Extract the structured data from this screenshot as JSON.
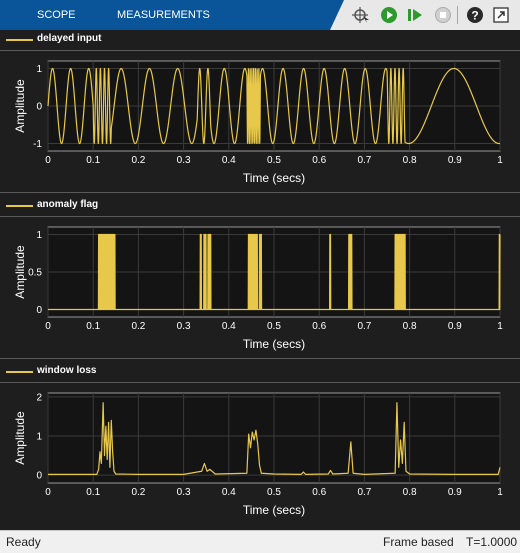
{
  "toolbar": {
    "tabs": [
      "SCOPE",
      "MEASUREMENTS"
    ],
    "buttons": [
      "signal-select-icon",
      "run-icon",
      "step-forward-icon",
      "stop-icon",
      "help-icon",
      "undock-icon"
    ]
  },
  "panels": [
    {
      "legend": "delayed input",
      "ylabel": "Amplitude",
      "xlabel": "Time (secs)"
    },
    {
      "legend": "anomaly flag",
      "ylabel": "Amplitude",
      "xlabel": "Time (secs)"
    },
    {
      "legend": "window loss",
      "ylabel": "Amplitude",
      "xlabel": "Time (secs)"
    }
  ],
  "status": {
    "left": "Ready",
    "mode": "Frame based",
    "time": "T=1.0000"
  },
  "colors": {
    "trace": "#e8c84a",
    "plot_bg": "#141414",
    "toolbar": "#0a5599"
  },
  "chart_data": [
    {
      "type": "line",
      "series": [
        {
          "name": "delayed input"
        }
      ],
      "xlabel": "Time (secs)",
      "ylabel": "Amplitude",
      "xlim": [
        0,
        1
      ],
      "ylim": [
        -1.2,
        1.2
      ],
      "xticks": [
        "0",
        "0.1",
        "0.2",
        "0.3",
        "0.4",
        "0.5",
        "0.6",
        "0.7",
        "0.8",
        "0.9",
        "1"
      ],
      "yticks": [
        "-1",
        "0",
        "1"
      ],
      "ytick_values": [
        -1,
        0,
        1
      ],
      "frequencies_hz": [
        {
          "x": [
            0.0,
            0.1
          ],
          "f": 25
        },
        {
          "x": [
            0.1,
            0.14
          ],
          "f": 110
        },
        {
          "x": [
            0.14,
            0.33
          ],
          "f": 16
        },
        {
          "x": [
            0.33,
            0.36
          ],
          "f": 55
        },
        {
          "x": [
            0.36,
            0.44
          ],
          "f": 22
        },
        {
          "x": [
            0.44,
            0.47
          ],
          "f": 260
        },
        {
          "x": [
            0.47,
            0.75
          ],
          "f": 22
        },
        {
          "x": [
            0.75,
            0.79
          ],
          "f": 110
        },
        {
          "x": [
            0.79,
            1.0
          ],
          "f": 5
        }
      ],
      "grid": true
    },
    {
      "type": "line",
      "series": [
        {
          "name": "anomaly flag"
        }
      ],
      "xlabel": "Time (secs)",
      "ylabel": "Amplitude",
      "xlim": [
        0,
        1
      ],
      "ylim": [
        -0.1,
        1.1
      ],
      "xticks": [
        "0",
        "0.1",
        "0.2",
        "0.3",
        "0.4",
        "0.5",
        "0.6",
        "0.7",
        "0.8",
        "0.9",
        "1"
      ],
      "yticks": [
        "0",
        "0.5",
        "1"
      ],
      "ytick_values": [
        0,
        0.5,
        1
      ],
      "high_intervals": [
        [
          0.112,
          0.148
        ],
        [
          0.337,
          0.339
        ],
        [
          0.345,
          0.35
        ],
        [
          0.354,
          0.36
        ],
        [
          0.443,
          0.455
        ],
        [
          0.457,
          0.463
        ],
        [
          0.468,
          0.472
        ],
        [
          0.623,
          0.625
        ],
        [
          0.665,
          0.672
        ],
        [
          0.768,
          0.772
        ],
        [
          0.774,
          0.79
        ],
        [
          0.998,
          1.0
        ]
      ],
      "grid": true
    },
    {
      "type": "line",
      "series": [
        {
          "name": "window loss"
        }
      ],
      "xlabel": "Time (secs)",
      "ylabel": "Amplitude",
      "xlim": [
        0,
        1
      ],
      "ylim": [
        -0.2,
        2.1
      ],
      "xticks": [
        "0",
        "0.1",
        "0.2",
        "0.3",
        "0.4",
        "0.5",
        "0.6",
        "0.7",
        "0.8",
        "0.9",
        "1"
      ],
      "yticks": [
        "0",
        "1",
        "2"
      ],
      "ytick_values": [
        0,
        1,
        2
      ],
      "points": [
        [
          0,
          0.02
        ],
        [
          0.05,
          0.02
        ],
        [
          0.108,
          0.02
        ],
        [
          0.112,
          0.15
        ],
        [
          0.115,
          0.6
        ],
        [
          0.118,
          0.3
        ],
        [
          0.122,
          1.85
        ],
        [
          0.125,
          0.5
        ],
        [
          0.128,
          1.25
        ],
        [
          0.131,
          0.4
        ],
        [
          0.134,
          1.35
        ],
        [
          0.137,
          0.2
        ],
        [
          0.14,
          1.4
        ],
        [
          0.143,
          0.6
        ],
        [
          0.146,
          0.1
        ],
        [
          0.15,
          0.03
        ],
        [
          0.2,
          0.02
        ],
        [
          0.3,
          0.02
        ],
        [
          0.34,
          0.1
        ],
        [
          0.346,
          0.3
        ],
        [
          0.352,
          0.1
        ],
        [
          0.358,
          0.15
        ],
        [
          0.37,
          0.03
        ],
        [
          0.44,
          0.05
        ],
        [
          0.444,
          1.05
        ],
        [
          0.448,
          0.7
        ],
        [
          0.452,
          1.1
        ],
        [
          0.456,
          0.9
        ],
        [
          0.46,
          1.15
        ],
        [
          0.464,
          0.8
        ],
        [
          0.468,
          0.25
        ],
        [
          0.472,
          0.05
        ],
        [
          0.5,
          0.03
        ],
        [
          0.56,
          0.02
        ],
        [
          0.565,
          0.08
        ],
        [
          0.57,
          0.02
        ],
        [
          0.62,
          0.03
        ],
        [
          0.625,
          0.12
        ],
        [
          0.63,
          0.03
        ],
        [
          0.664,
          0.05
        ],
        [
          0.67,
          0.85
        ],
        [
          0.675,
          0.05
        ],
        [
          0.7,
          0.02
        ],
        [
          0.768,
          0.05
        ],
        [
          0.772,
          1.85
        ],
        [
          0.776,
          0.2
        ],
        [
          0.78,
          0.9
        ],
        [
          0.784,
          0.3
        ],
        [
          0.788,
          1.35
        ],
        [
          0.792,
          0.1
        ],
        [
          0.8,
          0.03
        ],
        [
          0.9,
          0.02
        ],
        [
          0.996,
          0.02
        ],
        [
          1.0,
          0.2
        ]
      ],
      "grid": true
    }
  ]
}
